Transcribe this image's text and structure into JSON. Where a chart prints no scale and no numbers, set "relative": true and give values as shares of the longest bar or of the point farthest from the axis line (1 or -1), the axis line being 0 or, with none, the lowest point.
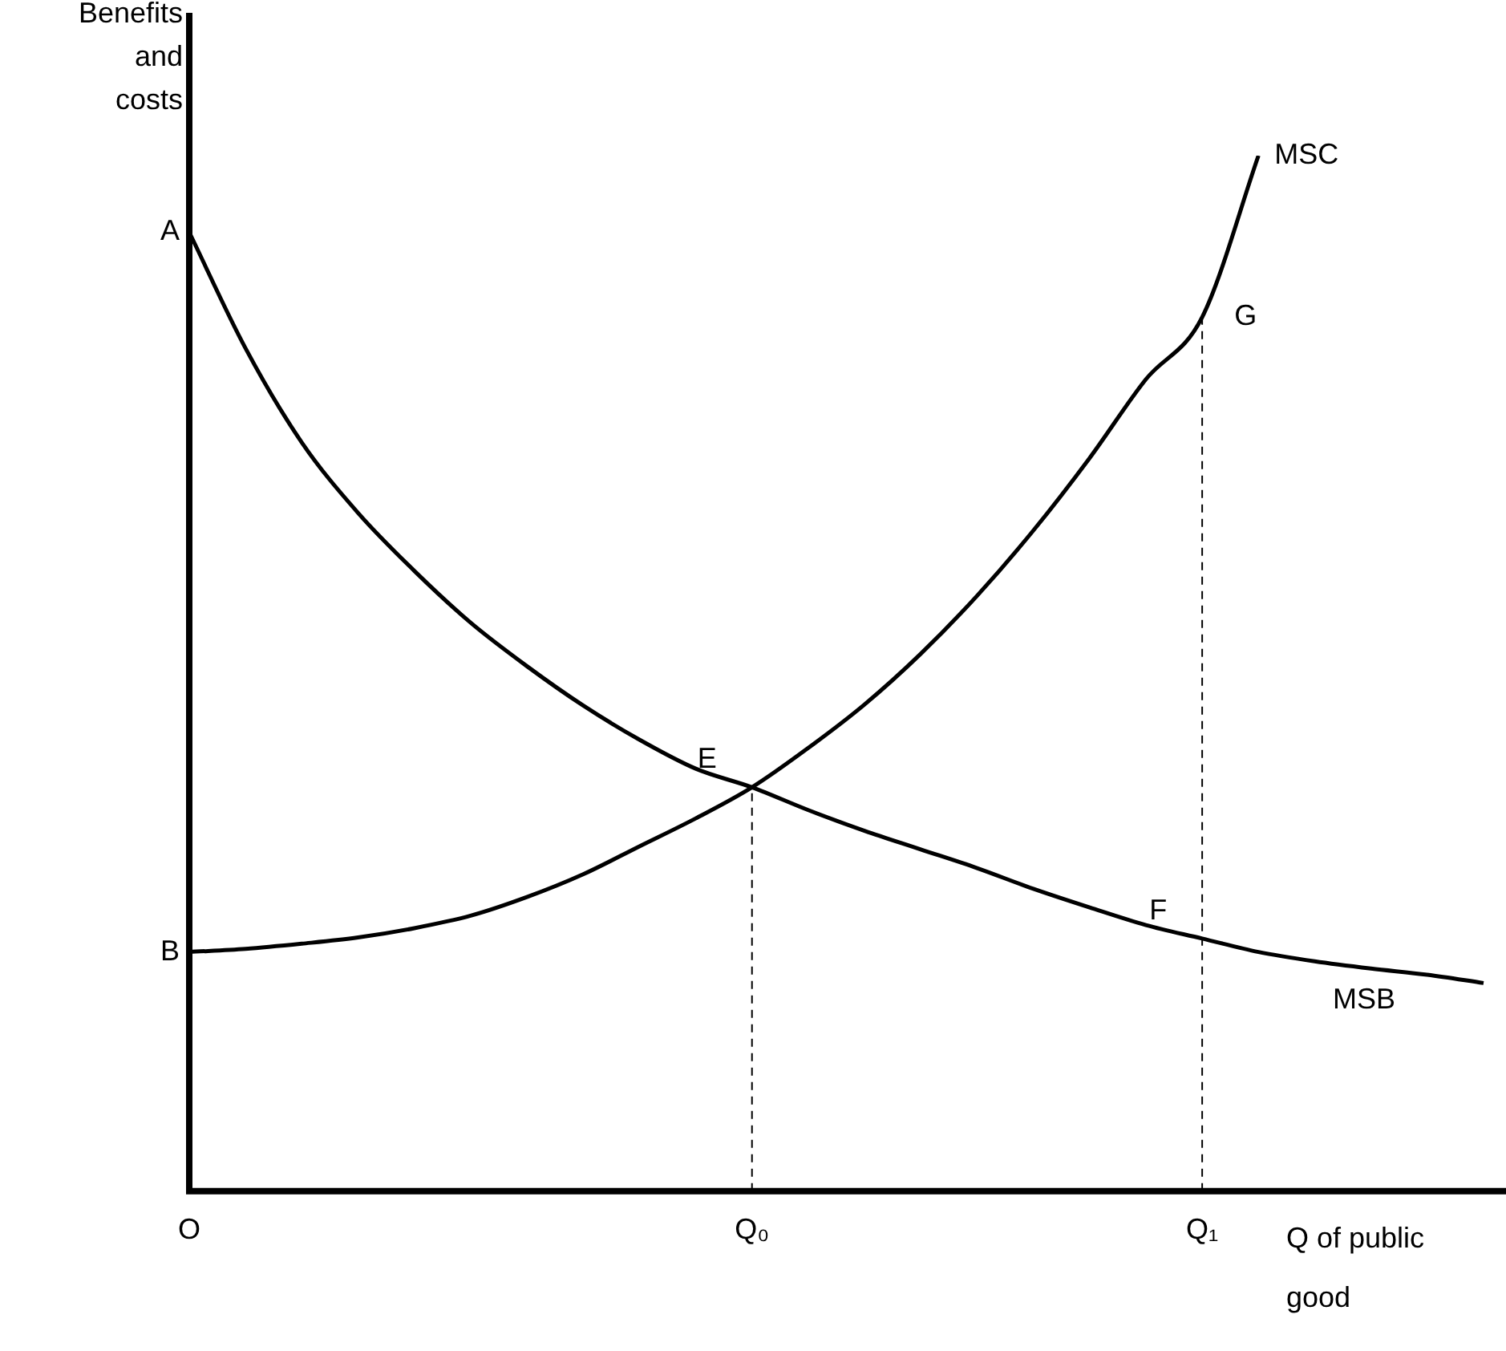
{
  "chart_data": {
    "type": "line",
    "relative": true,
    "xlabel": "Q of public good",
    "ylabel": "Benefits and costs",
    "categories": [
      "O",
      null,
      null,
      null,
      null,
      null,
      null,
      null,
      null,
      null,
      "Q₀",
      null,
      null,
      null,
      null,
      null,
      null,
      null,
      "Q₁",
      null,
      null,
      null,
      null,
      null
    ],
    "series": [
      {
        "name": "MSB",
        "color": "#000000",
        "values": [
          0.926,
          0.814,
          0.723,
          0.655,
          0.599,
          0.549,
          0.507,
          0.469,
          0.436,
          0.408,
          0.39,
          0.368,
          0.348,
          0.33,
          0.312,
          0.292,
          0.274,
          0.257,
          0.244,
          0.231,
          0.222,
          0.215,
          0.209,
          0.201
        ]
      },
      {
        "name": "MSC",
        "color": "#000000",
        "values": [
          0.231,
          0.234,
          0.239,
          0.245,
          0.254,
          0.266,
          0.284,
          0.306,
          0.333,
          0.36,
          0.39,
          0.428,
          0.47,
          0.519,
          0.575,
          0.638,
          0.708,
          0.784,
          0.844,
          1,
          null,
          null,
          null,
          null
        ]
      }
    ],
    "ref_lines": [
      {
        "axis": "x",
        "value": "Q₀",
        "line_style": "dashed",
        "color": "#000000"
      },
      {
        "axis": "x",
        "value": "Q₁",
        "line_style": "dashed",
        "color": "#000000"
      }
    ],
    "annotations": [
      {
        "text": "A",
        "x": "O",
        "y": 0.926
      },
      {
        "text": "B",
        "x": "O",
        "y": 0.231
      },
      {
        "text": "E",
        "x": "Q₀",
        "y": 0.39
      },
      {
        "text": "F",
        "x": "Q₁",
        "y": 0.244
      },
      {
        "text": "G",
        "x": "Q₁",
        "y": 0.844
      }
    ],
    "grid": false,
    "legend": false,
    "marker": "none",
    "line_style": "solid"
  }
}
